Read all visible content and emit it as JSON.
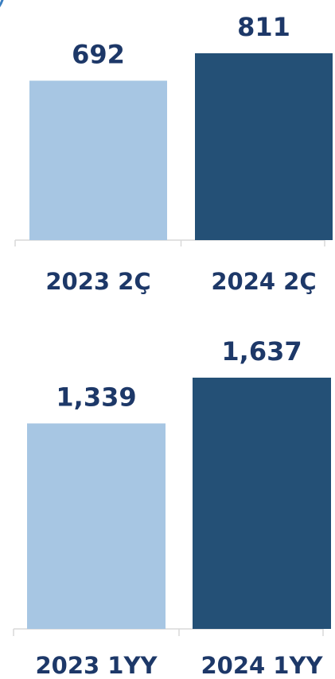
{
  "colors": {
    "bar_previous": "#a7c6e3",
    "bar_current": "#245076",
    "label_text": "#1d3868",
    "axis": "#d9d9d9",
    "corner_mark": "#3a7ec0"
  },
  "chart_data": [
    {
      "type": "bar",
      "categories": [
        "2023 2Ç",
        "2024 2Ç"
      ],
      "values": [
        692,
        811
      ],
      "data_labels": [
        "692",
        "811"
      ],
      "bar_colors": [
        "#a7c6e3",
        "#245076"
      ],
      "ylim": [
        0,
        811
      ],
      "grid": false,
      "legend": "none"
    },
    {
      "type": "bar",
      "categories": [
        "2023 1YY",
        "2024 1YY"
      ],
      "values": [
        1339,
        1637
      ],
      "data_labels": [
        "1,339",
        "1,637"
      ],
      "bar_colors": [
        "#a7c6e3",
        "#245076"
      ],
      "ylim": [
        0,
        1637
      ],
      "grid": false,
      "legend": "none"
    }
  ]
}
